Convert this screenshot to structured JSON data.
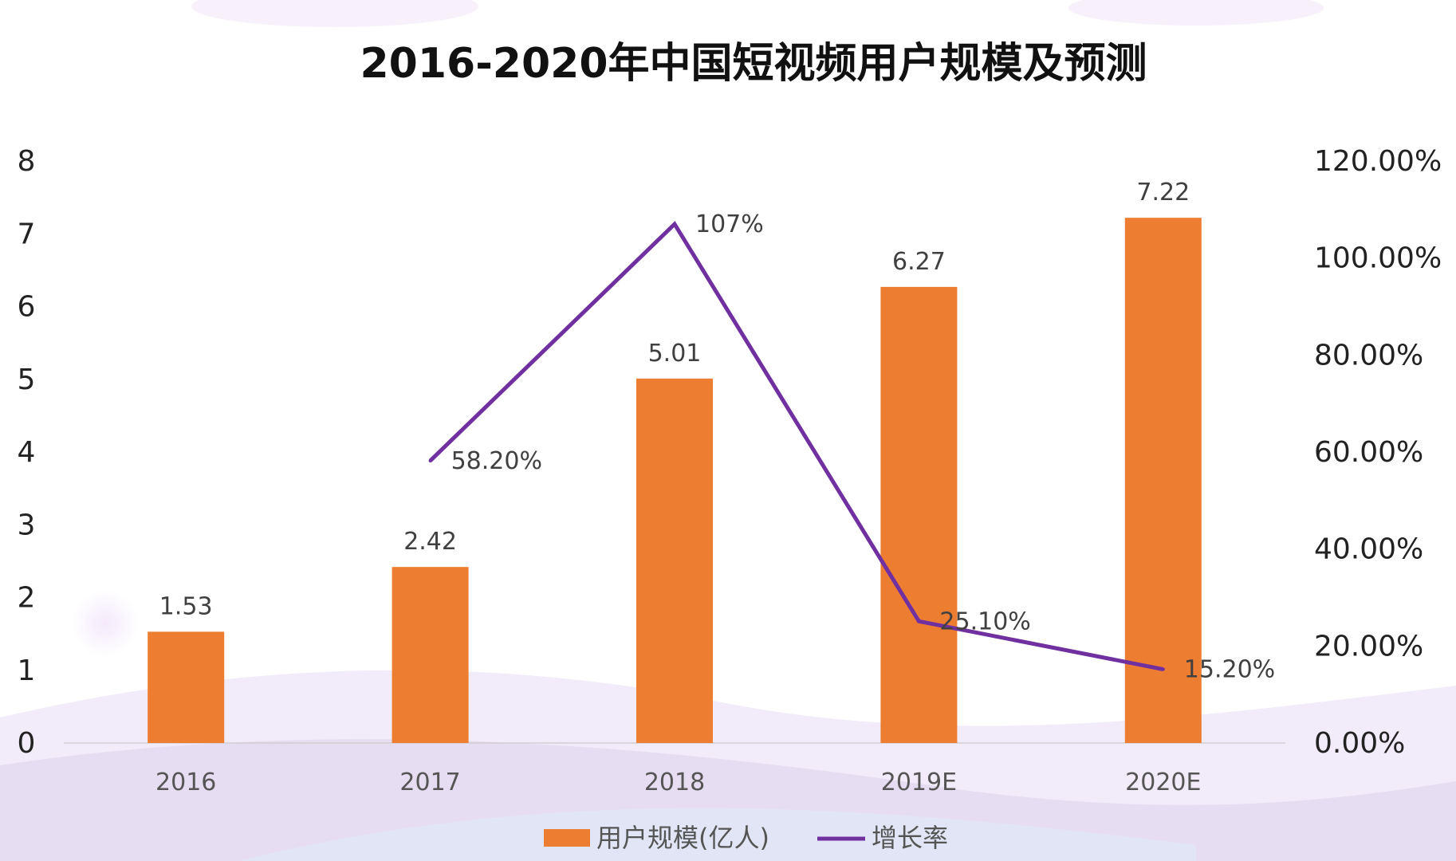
{
  "chart_data": {
    "type": "bar",
    "title": "2016-2020年中国短视频用户规模及预测",
    "categories": [
      "2016",
      "2017",
      "2018",
      "2019E",
      "2020E"
    ],
    "series": [
      {
        "name": "用户规模(亿人)",
        "type": "bar",
        "axis": "left",
        "values": [
          1.53,
          2.42,
          5.01,
          6.27,
          7.22
        ],
        "labels": [
          "1.53",
          "2.42",
          "5.01",
          "6.27",
          "7.22"
        ],
        "color": "#ED7D31"
      },
      {
        "name": "增长率",
        "type": "line",
        "axis": "right",
        "values": [
          null,
          58.2,
          107,
          25.1,
          15.2
        ],
        "labels": [
          "",
          "58.20%",
          "107%",
          "25.10%",
          "15.20%"
        ],
        "color": "#7030A0"
      }
    ],
    "y_left": {
      "ylim": [
        0,
        8
      ],
      "ticks": [
        "0",
        "1",
        "2",
        "3",
        "4",
        "5",
        "6",
        "7",
        "8"
      ]
    },
    "y_right": {
      "ylim": [
        0,
        120
      ],
      "ticks": [
        "0.00%",
        "20.00%",
        "40.00%",
        "60.00%",
        "80.00%",
        "100.00%",
        "120.00%"
      ]
    },
    "grid": false,
    "legend_position": "bottom"
  }
}
